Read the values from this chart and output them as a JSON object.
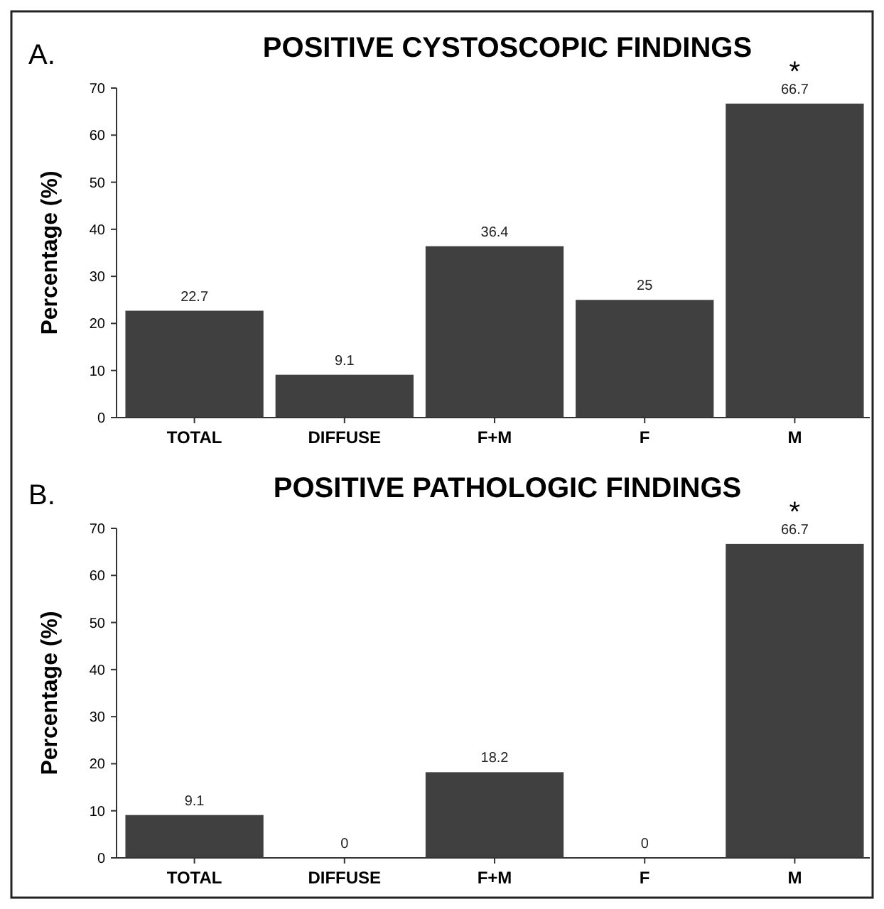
{
  "chart_data": [
    {
      "type": "bar",
      "title": "POSITIVE CYSTOSCOPIC FINDINGS",
      "ylabel": "Percentage (%)",
      "categories": [
        "TOTAL",
        "DIFFUSE",
        "F+M",
        "F",
        "M"
      ],
      "values": [
        22.7,
        9.1,
        36.4,
        25,
        66.7
      ],
      "color": "#404040",
      "ylim": [
        0,
        70
      ],
      "yticks": [
        0,
        10,
        20,
        30,
        40,
        50,
        60,
        70
      ],
      "data_labels": true,
      "annotations": [
        "A.",
        {
          "text": "*",
          "x": "M",
          "y": 66.7
        }
      ]
    },
    {
      "type": "bar",
      "title": "POSITIVE PATHOLOGIC FINDINGS",
      "ylabel": "Percentage (%)",
      "categories": [
        "TOTAL",
        "DIFFUSE",
        "F+M",
        "F",
        "M"
      ],
      "values": [
        9.1,
        0,
        18.2,
        0,
        66.7
      ],
      "color": "#404040",
      "ylim": [
        0,
        70
      ],
      "yticks": [
        0,
        10,
        20,
        30,
        40,
        50,
        60,
        70
      ],
      "data_labels": true,
      "annotations": [
        "B.",
        {
          "text": "*",
          "x": "M",
          "y": 66.7
        }
      ]
    }
  ]
}
